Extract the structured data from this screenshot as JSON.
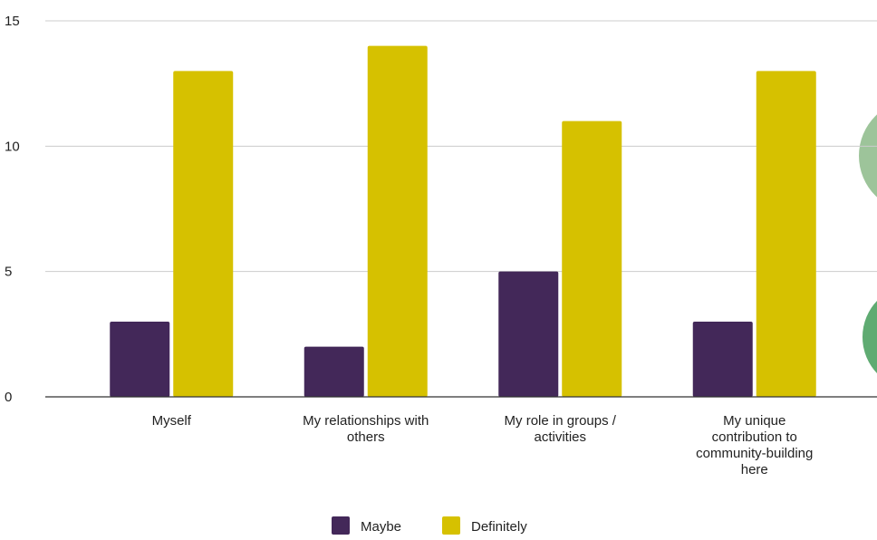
{
  "chart_data": {
    "type": "bar",
    "categories": [
      [
        "Myself"
      ],
      [
        "My relationships with",
        "others"
      ],
      [
        "My role in groups /",
        "activities"
      ],
      [
        "My unique",
        "contribution to",
        "community-building",
        "here"
      ]
    ],
    "series": [
      {
        "name": "Maybe",
        "values": [
          3,
          2,
          5,
          3
        ],
        "color": "#432859"
      },
      {
        "name": "Definitely",
        "values": [
          13,
          14,
          11,
          13
        ],
        "color": "#d6c100"
      }
    ],
    "ylim": [
      0,
      15
    ],
    "yticks": [
      0,
      5,
      10,
      15
    ],
    "grid": true,
    "legend_position": "bottom"
  },
  "decorations": {
    "circle_colors": [
      "#9dc49a",
      "#5fab72"
    ]
  }
}
